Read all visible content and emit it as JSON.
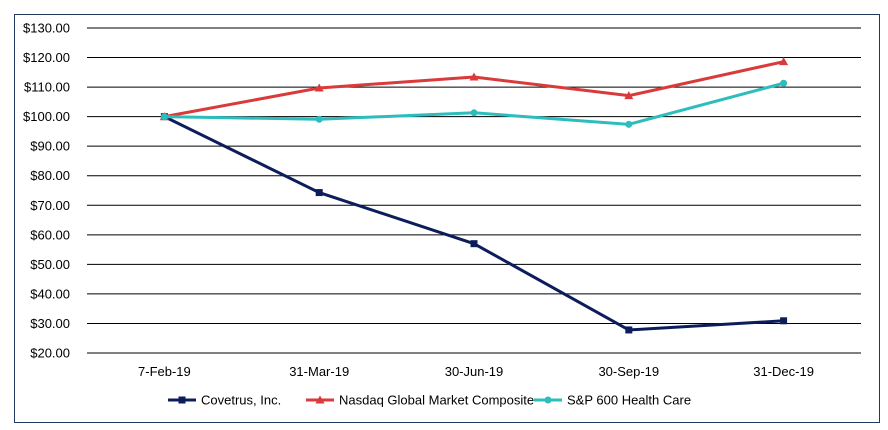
{
  "chart_data": {
    "type": "line",
    "title": "",
    "xlabel": "",
    "ylabel": "",
    "categories": [
      "7-Feb-19",
      "31-Mar-19",
      "30-Jun-19",
      "30-Sep-19",
      "31-Dec-19"
    ],
    "ylim": [
      20,
      130
    ],
    "ytick_step": 10,
    "ytick_labels": [
      "$20.00",
      "$30.00",
      "$40.00",
      "$50.00",
      "$60.00",
      "$70.00",
      "$80.00",
      "$90.00",
      "$100.00",
      "$110.00",
      "$120.00",
      "$130.00"
    ],
    "grid": true,
    "legend_position": "bottom",
    "series": [
      {
        "name": "Covetrus, Inc.",
        "color": "#0d1d5c",
        "marker": "square",
        "values": [
          100.0,
          74.3,
          57.0,
          27.8,
          30.9
        ]
      },
      {
        "name": "Nasdaq Global Market Composite",
        "color": "#d93a3a",
        "marker": "triangle",
        "values": [
          100.0,
          109.7,
          113.4,
          107.1,
          118.6
        ]
      },
      {
        "name": "S&P 600 Health Care",
        "color": "#2dbdbd",
        "marker": "circle",
        "values": [
          100.0,
          99.1,
          101.3,
          97.4,
          111.3
        ]
      }
    ]
  }
}
